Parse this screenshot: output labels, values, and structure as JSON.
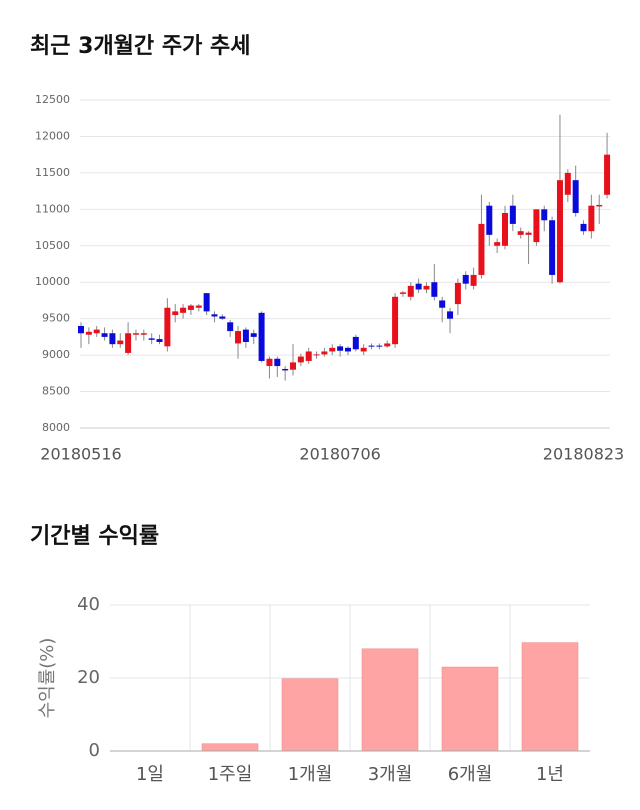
{
  "chart_data": [
    {
      "type": "candlestick",
      "title": "최근 3개월간 주가 추세",
      "categories": [
        "20180516",
        null,
        null,
        null,
        null,
        null,
        null,
        null,
        null,
        null,
        null,
        null,
        null,
        null,
        null,
        null,
        null,
        null,
        null,
        null,
        null,
        null,
        null,
        null,
        null,
        null,
        null,
        null,
        null,
        null,
        null,
        null,
        null,
        "20180706",
        null,
        null,
        null,
        null,
        null,
        null,
        null,
        null,
        null,
        null,
        null,
        null,
        null,
        null,
        null,
        null,
        null,
        null,
        null,
        null,
        null,
        null,
        null,
        null,
        null,
        null,
        null,
        null,
        null,
        null,
        "20180823",
        null,
        null,
        null
      ],
      "open": [
        9400,
        9280,
        9300,
        9300,
        9300,
        9150,
        9030,
        9280,
        9280,
        9230,
        9220,
        9120,
        9550,
        9580,
        9620,
        9650,
        9850,
        9560,
        9530,
        9450,
        9160,
        9350,
        9300,
        9580,
        8850,
        8950,
        8810,
        8800,
        8900,
        8920,
        9000,
        9010,
        9050,
        9120,
        9100,
        9250,
        9050,
        9130,
        9130,
        9120,
        9150,
        9840,
        9800,
        9980,
        9900,
        10000,
        9750,
        9600,
        9700,
        10100,
        9950,
        10100,
        11050,
        10500,
        10500,
        11050,
        10650,
        10650,
        10550,
        11000,
        10850,
        10000,
        11200,
        11400,
        10800,
        10700,
        11040,
        11200
      ],
      "high": [
        9450,
        9380,
        9400,
        9380,
        9350,
        9300,
        9450,
        9350,
        9350,
        9300,
        9280,
        9780,
        9700,
        9700,
        9700,
        9700,
        9850,
        9600,
        9560,
        9480,
        9400,
        9380,
        9350,
        9600,
        8980,
        8980,
        8850,
        9150,
        9020,
        9100,
        9050,
        9100,
        9150,
        9150,
        9120,
        9280,
        9150,
        9160,
        9160,
        9200,
        9850,
        9880,
        10000,
        10050,
        10000,
        10250,
        9800,
        9650,
        10050,
        10150,
        10200,
        11200,
        11100,
        10600,
        11050,
        11200,
        10750,
        10700,
        11000,
        11050,
        10900,
        12300,
        11550,
        11600,
        10850,
        11200,
        11200,
        12050
      ],
      "low": [
        9100,
        9150,
        9250,
        9200,
        9100,
        9100,
        9000,
        9200,
        9200,
        9150,
        9150,
        9050,
        9450,
        9500,
        9550,
        9600,
        9550,
        9450,
        9480,
        9250,
        8950,
        9100,
        9150,
        8900,
        8680,
        8700,
        8650,
        8720,
        8850,
        8880,
        8950,
        8980,
        9000,
        8980,
        9000,
        9050,
        9000,
        9080,
        9080,
        9100,
        9100,
        9800,
        9750,
        9850,
        9850,
        9750,
        9450,
        9300,
        9550,
        9900,
        9900,
        10050,
        10500,
        10400,
        10450,
        10700,
        10600,
        10250,
        10500,
        10700,
        9980,
        9980,
        11100,
        10900,
        10650,
        10600,
        10800,
        11150
      ],
      "close": [
        9300,
        9320,
        9350,
        9250,
        9150,
        9200,
        9300,
        9300,
        9300,
        9210,
        9180,
        9650,
        9600,
        9650,
        9680,
        9680,
        9600,
        9530,
        9500,
        9330,
        9330,
        9180,
        9250,
        8920,
        8950,
        8850,
        8790,
        8900,
        8980,
        9050,
        9010,
        9050,
        9100,
        9060,
        9050,
        9080,
        9100,
        9120,
        9120,
        9160,
        9800,
        9860,
        9950,
        9900,
        9950,
        9800,
        9650,
        9500,
        9990,
        9980,
        10100,
        10800,
        10650,
        10550,
        10950,
        10800,
        10700,
        10680,
        11000,
        10850,
        10100,
        11400,
        11500,
        10950,
        10700,
        11050,
        11060,
        11750
      ],
      "up_color": "#e8111b",
      "down_color": "#0a0adb",
      "ylim": [
        8000,
        12500
      ],
      "yticks": [
        8000,
        8500,
        9000,
        9500,
        10000,
        10500,
        11000,
        11500,
        12000,
        12500
      ],
      "grid": true
    },
    {
      "type": "bar",
      "title": "기간별 수익률",
      "y_label": "수익률(%)",
      "categories": [
        "1일",
        "1주일",
        "1개월",
        "3개월",
        "6개월",
        "1년"
      ],
      "values": [
        0,
        2,
        19.8,
        28,
        23,
        29.7
      ],
      "color": "#ffa4a4",
      "ylim": [
        0,
        40
      ],
      "yticks": [
        0,
        20,
        40
      ],
      "grid": true
    }
  ]
}
